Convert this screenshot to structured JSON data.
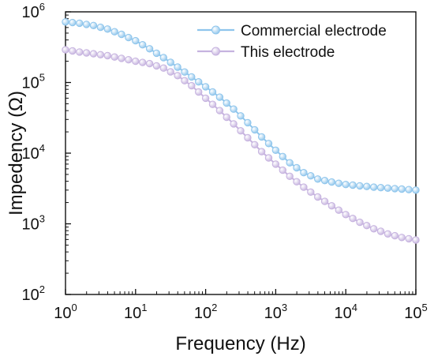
{
  "chart_data": {
    "type": "scatter",
    "title": "",
    "xlabel": "Frequency (Hz)",
    "ylabel": "Impedency (Ω)",
    "x_scale": "log",
    "y_scale": "log",
    "xlim": [
      1,
      100000
    ],
    "ylim": [
      100,
      1000000
    ],
    "x_ticks": [
      {
        "value": 1,
        "base": "10",
        "exp": "0"
      },
      {
        "value": 10,
        "base": "10",
        "exp": "1"
      },
      {
        "value": 100,
        "base": "10",
        "exp": "2"
      },
      {
        "value": 1000,
        "base": "10",
        "exp": "3"
      },
      {
        "value": 10000,
        "base": "10",
        "exp": "4"
      },
      {
        "value": 100000,
        "base": "10",
        "exp": "5"
      }
    ],
    "y_ticks": [
      {
        "value": 100,
        "base": "10",
        "exp": "2"
      },
      {
        "value": 1000,
        "base": "10",
        "exp": "3"
      },
      {
        "value": 10000,
        "base": "10",
        "exp": "4"
      },
      {
        "value": 100000,
        "base": "10",
        "exp": "5"
      },
      {
        "value": 1000000,
        "base": "10",
        "exp": "6"
      }
    ],
    "grid": false,
    "legend_position": "top-right",
    "series": [
      {
        "name": "Commercial electrode",
        "color": "#8ec5ec",
        "x": [
          1,
          1.585,
          2.512,
          3.981,
          6.31,
          10,
          15.85,
          25.12,
          39.81,
          63.1,
          100,
          158.5,
          251.2,
          398.1,
          631,
          1000,
          1585,
          2512,
          3981,
          6310,
          10000,
          15850,
          25120,
          39810,
          63100,
          100000
        ],
        "y": [
          720000,
          690000,
          640000,
          570000,
          480000,
          390000,
          300000,
          225000,
          165000,
          120000,
          87000,
          62000,
          42000,
          27000,
          17000,
          11000,
          7300,
          5300,
          4300,
          3900,
          3600,
          3450,
          3300,
          3200,
          3100,
          3000
        ]
      },
      {
        "name": "This electrode",
        "color": "#c6b3df",
        "x": [
          1,
          1.585,
          2.512,
          3.981,
          6.31,
          10,
          15.85,
          25.12,
          39.81,
          63.1,
          100,
          158.5,
          251.2,
          398.1,
          631,
          1000,
          1585,
          2512,
          3981,
          6310,
          10000,
          15850,
          25120,
          39810,
          63100,
          100000
        ],
        "y": [
          290000,
          270000,
          255000,
          240000,
          220000,
          200000,
          185000,
          160000,
          125000,
          90000,
          60000,
          40000,
          26000,
          16500,
          10500,
          7000,
          4700,
          3300,
          2400,
          1800,
          1350,
          1050,
          850,
          720,
          640,
          590
        ]
      }
    ]
  }
}
